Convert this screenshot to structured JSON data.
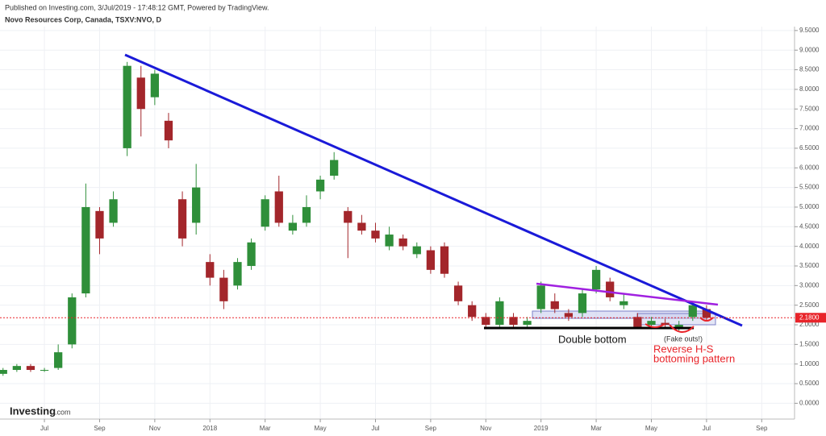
{
  "header": {
    "published": "Published on Investing.com, 3/Jul/2019 - 17:48:12 GMT, Powered by TradingView.",
    "symbol": "Novo Resources Corp, Canada, TSXV:NVO, D"
  },
  "logo": {
    "brand": "Investing",
    "suffix": ".com"
  },
  "chart_data": {
    "type": "candlestick",
    "up_color": "#2f8f3a",
    "down_color": "#a3262b",
    "xlim": [
      4.39,
      33.19
    ],
    "xticks": [
      {
        "value": 6,
        "label": "Jul"
      },
      {
        "value": 8,
        "label": "Sep"
      },
      {
        "value": 10,
        "label": "Nov"
      },
      {
        "value": 12,
        "label": "2018"
      },
      {
        "value": 14,
        "label": "Mar"
      },
      {
        "value": 16,
        "label": "May"
      },
      {
        "value": 18,
        "label": "Jul"
      },
      {
        "value": 20,
        "label": "Sep"
      },
      {
        "value": 22,
        "label": "Nov"
      },
      {
        "value": 24,
        "label": "2019"
      },
      {
        "value": 26,
        "label": "Mar"
      },
      {
        "value": 28,
        "label": "May"
      },
      {
        "value": 30,
        "label": "Jul"
      },
      {
        "value": 32,
        "label": "Sep"
      }
    ],
    "ylim": [
      -0.3,
      9.6
    ],
    "yticks": [
      {
        "value": 0,
        "label": "0.0000"
      },
      {
        "value": 0.5,
        "label": "0.5000"
      },
      {
        "value": 1,
        "label": "1.0000"
      },
      {
        "value": 1.5,
        "label": "1.5000"
      },
      {
        "value": 2,
        "label": "2.0000"
      },
      {
        "value": 2.5,
        "label": "2.5000"
      },
      {
        "value": 3,
        "label": "3.0000"
      },
      {
        "value": 3.5,
        "label": "3.5000"
      },
      {
        "value": 4,
        "label": "4.0000"
      },
      {
        "value": 4.5,
        "label": "4.5000"
      },
      {
        "value": 5,
        "label": "5.0000"
      },
      {
        "value": 5.5,
        "label": "5.5000"
      },
      {
        "value": 6,
        "label": "6.0000"
      },
      {
        "value": 6.5,
        "label": "6.5000"
      },
      {
        "value": 7,
        "label": "7.0000"
      },
      {
        "value": 7.5,
        "label": "7.5000"
      },
      {
        "value": 8,
        "label": "8.0000"
      },
      {
        "value": 8.5,
        "label": "8.5000"
      },
      {
        "value": 9,
        "label": "9.0000"
      },
      {
        "value": 9.5,
        "label": "9.5000"
      }
    ],
    "grid": true,
    "last_price": {
      "value": 2.18,
      "label": "2.1800"
    },
    "annotations": {
      "double_bottom": "Double bottom",
      "fake_outs": "(Fake outs!)",
      "reverse_hs_1": "Reverse H-S",
      "reverse_hs_2": "bottoming pattern"
    },
    "candles": [
      {
        "x": 4.5,
        "open": 0.75,
        "high": 0.9,
        "low": 0.7,
        "close": 0.85
      },
      {
        "x": 5.0,
        "open": 0.85,
        "high": 1.0,
        "low": 0.8,
        "close": 0.95
      },
      {
        "x": 5.5,
        "open": 0.95,
        "high": 1.0,
        "low": 0.8,
        "close": 0.85
      },
      {
        "x": 6.0,
        "open": 0.85,
        "high": 0.9,
        "low": 0.8,
        "close": 0.85
      },
      {
        "x": 6.5,
        "open": 0.9,
        "high": 1.5,
        "low": 0.85,
        "close": 1.3
      },
      {
        "x": 7.0,
        "open": 1.5,
        "high": 2.8,
        "low": 1.4,
        "close": 2.7
      },
      {
        "x": 7.5,
        "open": 2.8,
        "high": 5.6,
        "low": 2.7,
        "close": 5.0
      },
      {
        "x": 8.0,
        "open": 4.9,
        "high": 5.0,
        "low": 3.8,
        "close": 4.2
      },
      {
        "x": 8.5,
        "open": 4.6,
        "high": 5.4,
        "low": 4.5,
        "close": 5.2
      },
      {
        "x": 9.0,
        "open": 6.5,
        "high": 8.7,
        "low": 6.3,
        "close": 8.6
      },
      {
        "x": 9.5,
        "open": 8.3,
        "high": 8.6,
        "low": 6.8,
        "close": 7.5
      },
      {
        "x": 10.0,
        "open": 7.8,
        "high": 8.5,
        "low": 7.6,
        "close": 8.4
      },
      {
        "x": 10.5,
        "open": 7.2,
        "high": 7.4,
        "low": 6.5,
        "close": 6.7
      },
      {
        "x": 11.0,
        "open": 5.2,
        "high": 5.4,
        "low": 4.0,
        "close": 4.2
      },
      {
        "x": 11.5,
        "open": 4.6,
        "high": 6.1,
        "low": 4.3,
        "close": 5.5
      },
      {
        "x": 12.0,
        "open": 3.6,
        "high": 3.8,
        "low": 3.0,
        "close": 3.2
      },
      {
        "x": 12.5,
        "open": 3.2,
        "high": 3.4,
        "low": 2.4,
        "close": 2.6
      },
      {
        "x": 13.0,
        "open": 3.0,
        "high": 3.7,
        "low": 2.9,
        "close": 3.6
      },
      {
        "x": 13.5,
        "open": 3.5,
        "high": 4.2,
        "low": 3.4,
        "close": 4.1
      },
      {
        "x": 14.0,
        "open": 4.5,
        "high": 5.3,
        "low": 4.4,
        "close": 5.2
      },
      {
        "x": 14.5,
        "open": 5.4,
        "high": 5.8,
        "low": 4.5,
        "close": 4.6
      },
      {
        "x": 15.0,
        "open": 4.4,
        "high": 4.8,
        "low": 4.3,
        "close": 4.6
      },
      {
        "x": 15.5,
        "open": 4.6,
        "high": 5.3,
        "low": 4.5,
        "close": 5.0
      },
      {
        "x": 16.0,
        "open": 5.4,
        "high": 5.8,
        "low": 5.2,
        "close": 5.7
      },
      {
        "x": 16.5,
        "open": 5.8,
        "high": 6.4,
        "low": 5.7,
        "close": 6.2
      },
      {
        "x": 17.0,
        "open": 4.9,
        "high": 5.0,
        "low": 3.7,
        "close": 4.6
      },
      {
        "x": 17.5,
        "open": 4.6,
        "high": 4.8,
        "low": 4.3,
        "close": 4.4
      },
      {
        "x": 18.0,
        "open": 4.4,
        "high": 4.6,
        "low": 4.1,
        "close": 4.2
      },
      {
        "x": 18.5,
        "open": 4.0,
        "high": 4.5,
        "low": 3.9,
        "close": 4.3
      },
      {
        "x": 19.0,
        "open": 4.2,
        "high": 4.3,
        "low": 3.9,
        "close": 4.0
      },
      {
        "x": 19.5,
        "open": 3.8,
        "high": 4.1,
        "low": 3.7,
        "close": 4.0
      },
      {
        "x": 20.0,
        "open": 3.9,
        "high": 4.0,
        "low": 3.3,
        "close": 3.4
      },
      {
        "x": 20.5,
        "open": 4.0,
        "high": 4.1,
        "low": 3.2,
        "close": 3.3
      },
      {
        "x": 21.0,
        "open": 3.0,
        "high": 3.1,
        "low": 2.5,
        "close": 2.6
      },
      {
        "x": 21.5,
        "open": 2.5,
        "high": 2.6,
        "low": 2.1,
        "close": 2.2
      },
      {
        "x": 22.0,
        "open": 2.2,
        "high": 2.3,
        "low": 1.9,
        "close": 2.0
      },
      {
        "x": 22.5,
        "open": 2.0,
        "high": 2.7,
        "low": 1.95,
        "close": 2.6
      },
      {
        "x": 23.0,
        "open": 2.2,
        "high": 2.3,
        "low": 1.95,
        "close": 2.0
      },
      {
        "x": 23.5,
        "open": 2.0,
        "high": 2.2,
        "low": 1.95,
        "close": 2.1
      },
      {
        "x": 24.0,
        "open": 2.4,
        "high": 3.1,
        "low": 2.3,
        "close": 3.0
      },
      {
        "x": 24.5,
        "open": 2.6,
        "high": 2.8,
        "low": 2.3,
        "close": 2.4
      },
      {
        "x": 25.0,
        "open": 2.3,
        "high": 2.4,
        "low": 2.1,
        "close": 2.2
      },
      {
        "x": 25.5,
        "open": 2.3,
        "high": 2.9,
        "low": 2.2,
        "close": 2.8
      },
      {
        "x": 26.0,
        "open": 2.9,
        "high": 3.5,
        "low": 2.8,
        "close": 3.4
      },
      {
        "x": 26.5,
        "open": 3.1,
        "high": 3.2,
        "low": 2.6,
        "close": 2.7
      },
      {
        "x": 27.0,
        "open": 2.5,
        "high": 2.8,
        "low": 2.4,
        "close": 2.6
      },
      {
        "x": 27.5,
        "open": 2.2,
        "high": 2.3,
        "low": 1.9,
        "close": 1.95
      },
      {
        "x": 28.0,
        "open": 2.0,
        "high": 2.2,
        "low": 1.95,
        "close": 2.1
      },
      {
        "x": 28.5,
        "open": 2.05,
        "high": 2.15,
        "low": 1.9,
        "close": 2.0
      },
      {
        "x": 29.0,
        "open": 1.9,
        "high": 2.1,
        "low": 1.85,
        "close": 2.0
      },
      {
        "x": 29.5,
        "open": 2.2,
        "high": 2.6,
        "low": 2.1,
        "close": 2.5
      },
      {
        "x": 30.0,
        "open": 2.4,
        "high": 2.5,
        "low": 2.1,
        "close": 2.18
      }
    ]
  }
}
